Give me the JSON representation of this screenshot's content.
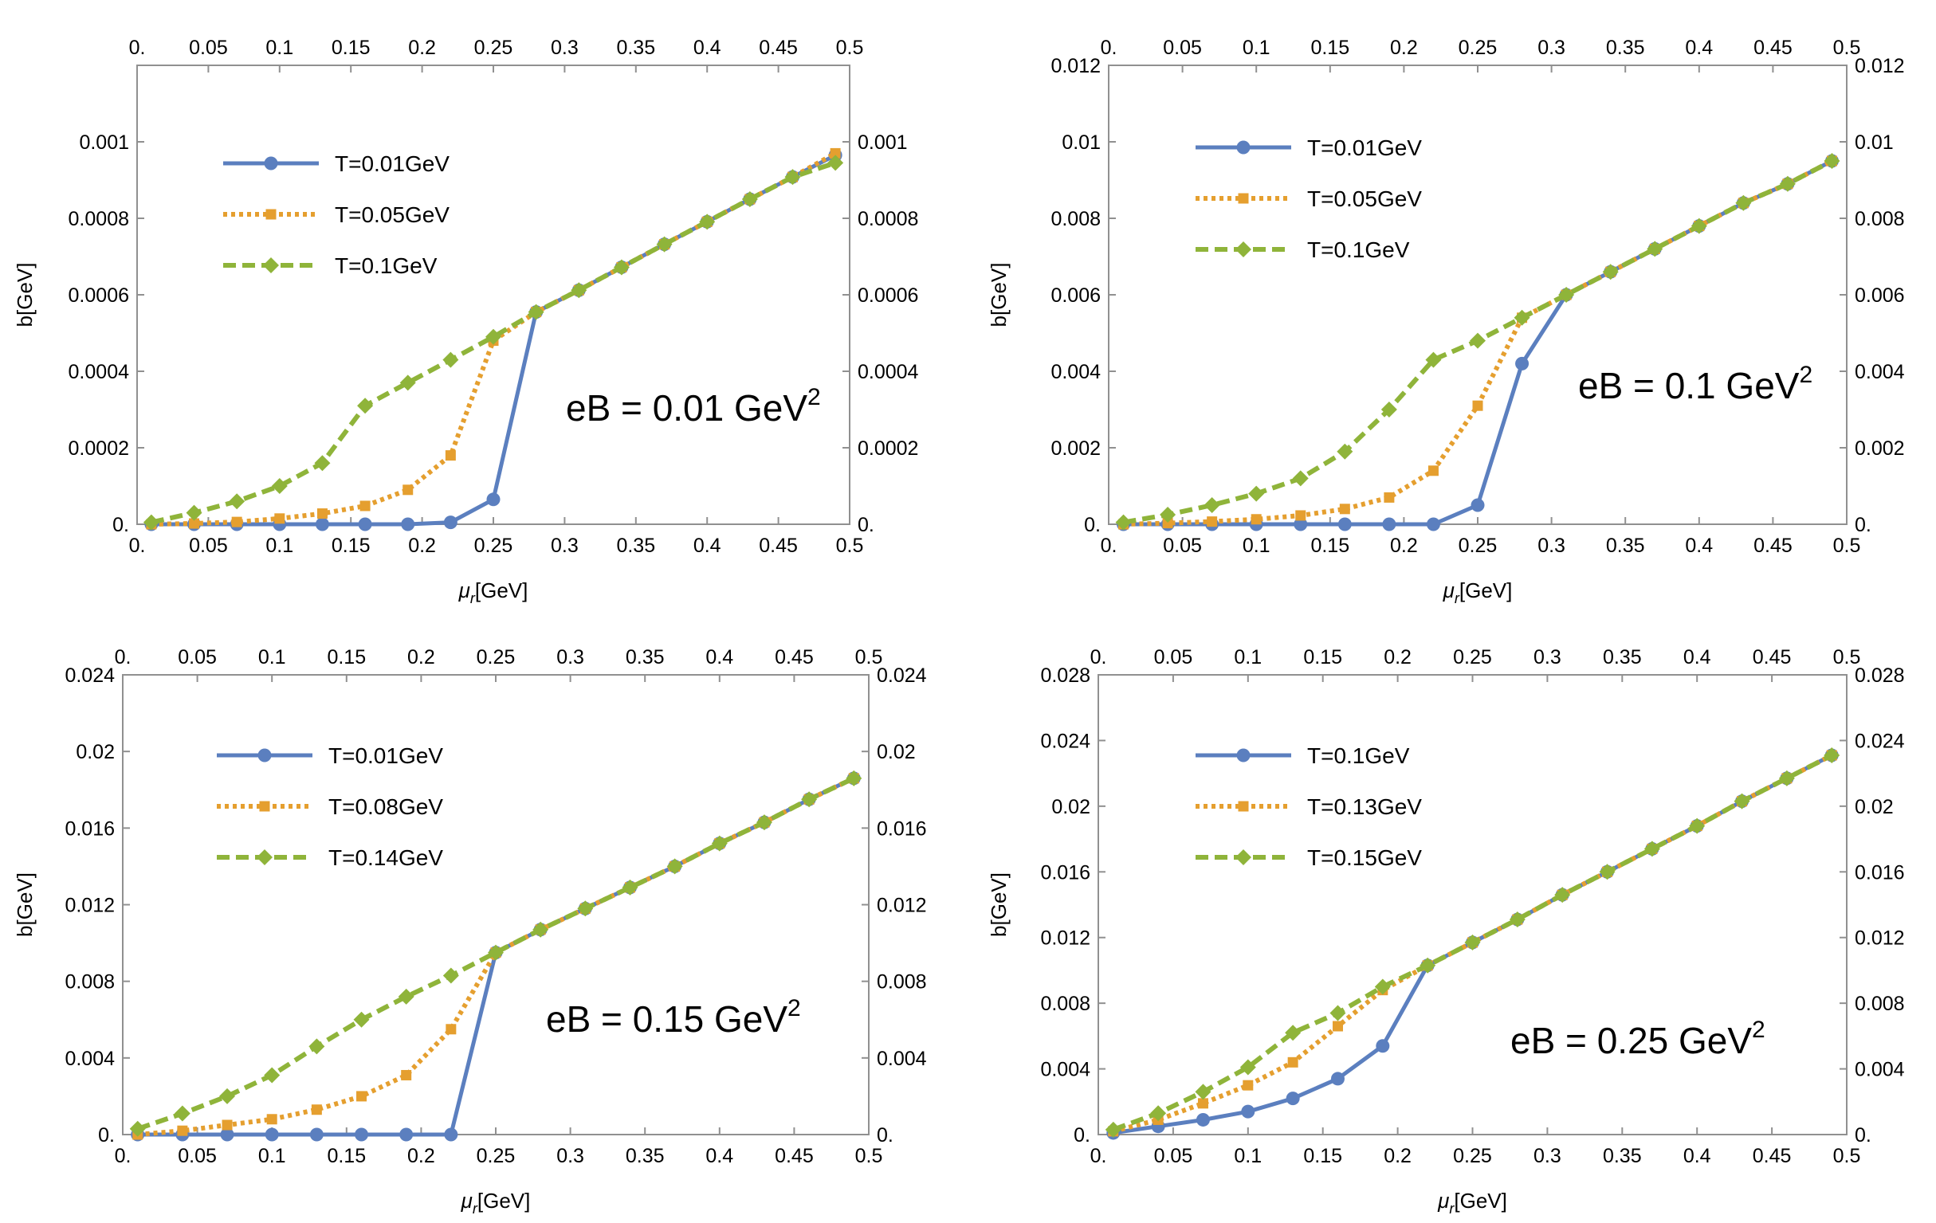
{
  "colors": {
    "blue": "#5b7fbf",
    "orange": "#e59f2f",
    "green": "#8fb43a",
    "frame": "#909090"
  },
  "chart_data": [
    {
      "type": "line",
      "xlabel_main": "μ",
      "xlabel_sub": "r",
      "xlabel_tail": "[GeV]",
      "ylabel": "b[GeV]",
      "xlim": [
        0,
        0.5
      ],
      "ylim": [
        0,
        0.0012
      ],
      "xticks": [
        0,
        0.05,
        0.1,
        0.15,
        0.2,
        0.25,
        0.3,
        0.35,
        0.4,
        0.45,
        0.5
      ],
      "xtick_labels": [
        "0.",
        "0.05",
        "0.1",
        "0.15",
        "0.2",
        "0.25",
        "0.3",
        "0.35",
        "0.4",
        "0.45",
        "0.5"
      ],
      "yticks": [
        0,
        0.0002,
        0.0004,
        0.0006,
        0.0008,
        0.001
      ],
      "ytick_labels": [
        "0.",
        "0.0002",
        "0.0004",
        "0.0006",
        "0.0008",
        "0.001"
      ],
      "annotation_main": "eB = 0.01 GeV",
      "annotation_sup": "2",
      "legend_position": "top-left",
      "series": [
        {
          "name": "T=0.01GeV",
          "style": "solid",
          "marker": "circle",
          "x": [
            0.01,
            0.04,
            0.07,
            0.1,
            0.13,
            0.16,
            0.19,
            0.22,
            0.25,
            0.28,
            0.31,
            0.34,
            0.37,
            0.4,
            0.43,
            0.46,
            0.49
          ],
          "y": [
            0,
            0,
            0,
            0,
            0,
            0,
            0,
            5e-06,
            6.5e-05,
            0.000555,
            0.000612,
            0.000672,
            0.000732,
            0.000791,
            0.00085,
            0.000908,
            0.000965
          ]
        },
        {
          "name": "T=0.05GeV",
          "style": "dotted",
          "marker": "square",
          "x": [
            0.01,
            0.04,
            0.07,
            0.1,
            0.13,
            0.16,
            0.19,
            0.22,
            0.25,
            0.28,
            0.31,
            0.34,
            0.37,
            0.4,
            0.43,
            0.46,
            0.49
          ],
          "y": [
            0,
            2e-06,
            6e-06,
            1.5e-05,
            2.8e-05,
            4.8e-05,
            9e-05,
            0.00018,
            0.00048,
            0.000555,
            0.000612,
            0.000672,
            0.000732,
            0.000791,
            0.00085,
            0.000908,
            0.00097
          ]
        },
        {
          "name": "T=0.1GeV",
          "style": "dashed",
          "marker": "diamond",
          "x": [
            0.01,
            0.04,
            0.07,
            0.1,
            0.13,
            0.16,
            0.19,
            0.22,
            0.25,
            0.28,
            0.31,
            0.34,
            0.37,
            0.4,
            0.43,
            0.46,
            0.49
          ],
          "y": [
            5e-06,
            3e-05,
            6e-05,
            0.0001,
            0.00016,
            0.00031,
            0.00037,
            0.00043,
            0.00049,
            0.000555,
            0.000612,
            0.000672,
            0.000732,
            0.000791,
            0.00085,
            0.000908,
            0.000945
          ]
        }
      ]
    },
    {
      "type": "line",
      "xlabel_main": "μ",
      "xlabel_sub": "r",
      "xlabel_tail": "[GeV]",
      "ylabel": "b[GeV]",
      "xlim": [
        0,
        0.5
      ],
      "ylim": [
        0,
        0.012
      ],
      "xticks": [
        0,
        0.05,
        0.1,
        0.15,
        0.2,
        0.25,
        0.3,
        0.35,
        0.4,
        0.45,
        0.5
      ],
      "xtick_labels": [
        "0.",
        "0.05",
        "0.1",
        "0.15",
        "0.2",
        "0.25",
        "0.3",
        "0.35",
        "0.4",
        "0.45",
        "0.5"
      ],
      "yticks": [
        0,
        0.002,
        0.004,
        0.006,
        0.008,
        0.01,
        0.012
      ],
      "ytick_labels": [
        "0.",
        "0.002",
        "0.004",
        "0.006",
        "0.008",
        "0.01",
        "0.012"
      ],
      "annotation_main": "eB = 0.1 GeV",
      "annotation_sup": "2",
      "legend_position": "top-left",
      "series": [
        {
          "name": "T=0.01GeV",
          "style": "solid",
          "marker": "circle",
          "x": [
            0.01,
            0.04,
            0.07,
            0.1,
            0.13,
            0.16,
            0.19,
            0.22,
            0.25,
            0.28,
            0.31,
            0.34,
            0.37,
            0.4,
            0.43,
            0.46,
            0.49
          ],
          "y": [
            0,
            0,
            0,
            0,
            0,
            0,
            0,
            0,
            0.0005,
            0.0042,
            0.006,
            0.0066,
            0.0072,
            0.0078,
            0.0084,
            0.0089,
            0.0095
          ]
        },
        {
          "name": "T=0.05GeV",
          "style": "dotted",
          "marker": "square",
          "x": [
            0.01,
            0.04,
            0.07,
            0.1,
            0.13,
            0.16,
            0.19,
            0.22,
            0.25,
            0.28,
            0.31,
            0.34,
            0.37,
            0.4,
            0.43,
            0.46,
            0.49
          ],
          "y": [
            0,
            3e-05,
            7e-05,
            0.00013,
            0.00023,
            0.0004,
            0.0007,
            0.0014,
            0.0031,
            0.0054,
            0.006,
            0.0066,
            0.0072,
            0.0078,
            0.0084,
            0.0089,
            0.0095
          ]
        },
        {
          "name": "T=0.1GeV",
          "style": "dashed",
          "marker": "diamond",
          "x": [
            0.01,
            0.04,
            0.07,
            0.1,
            0.13,
            0.16,
            0.19,
            0.22,
            0.25,
            0.28,
            0.31,
            0.34,
            0.37,
            0.4,
            0.43,
            0.46,
            0.49
          ],
          "y": [
            5e-05,
            0.00025,
            0.0005,
            0.0008,
            0.0012,
            0.0019,
            0.003,
            0.0043,
            0.0048,
            0.0054,
            0.006,
            0.0066,
            0.0072,
            0.0078,
            0.0084,
            0.0089,
            0.0095
          ]
        }
      ]
    },
    {
      "type": "line",
      "xlabel_main": "μ",
      "xlabel_sub": "r",
      "xlabel_tail": "[GeV]",
      "ylabel": "b[GeV]",
      "xlim": [
        0,
        0.5
      ],
      "ylim": [
        0,
        0.024
      ],
      "xticks": [
        0,
        0.05,
        0.1,
        0.15,
        0.2,
        0.25,
        0.3,
        0.35,
        0.4,
        0.45,
        0.5
      ],
      "xtick_labels": [
        "0.",
        "0.05",
        "0.1",
        "0.15",
        "0.2",
        "0.25",
        "0.3",
        "0.35",
        "0.4",
        "0.45",
        "0.5"
      ],
      "yticks": [
        0,
        0.004,
        0.008,
        0.012,
        0.016,
        0.02,
        0.024
      ],
      "ytick_labels": [
        "0.",
        "0.004",
        "0.008",
        "0.012",
        "0.016",
        "0.02",
        "0.024"
      ],
      "annotation_main": "eB = 0.15 GeV",
      "annotation_sup": "2",
      "legend_position": "top-left",
      "series": [
        {
          "name": "T=0.01GeV",
          "style": "solid",
          "marker": "circle",
          "x": [
            0.01,
            0.04,
            0.07,
            0.1,
            0.13,
            0.16,
            0.19,
            0.22,
            0.25,
            0.28,
            0.31,
            0.34,
            0.37,
            0.4,
            0.43,
            0.46,
            0.49
          ],
          "y": [
            0,
            0,
            0,
            0,
            0,
            0,
            0,
            0,
            0.0095,
            0.0107,
            0.0118,
            0.0129,
            0.014,
            0.0152,
            0.0163,
            0.0175,
            0.0186
          ]
        },
        {
          "name": "T=0.08GeV",
          "style": "dotted",
          "marker": "square",
          "x": [
            0.01,
            0.04,
            0.07,
            0.1,
            0.13,
            0.16,
            0.19,
            0.22,
            0.25,
            0.28,
            0.31,
            0.34,
            0.37,
            0.4,
            0.43,
            0.46,
            0.49
          ],
          "y": [
            0,
            0.0002,
            0.0005,
            0.0008,
            0.0013,
            0.002,
            0.0031,
            0.0055,
            0.0095,
            0.0107,
            0.0118,
            0.0129,
            0.014,
            0.0152,
            0.0163,
            0.0175,
            0.0186
          ]
        },
        {
          "name": "T=0.14GeV",
          "style": "dashed",
          "marker": "diamond",
          "x": [
            0.01,
            0.04,
            0.07,
            0.1,
            0.13,
            0.16,
            0.19,
            0.22,
            0.25,
            0.28,
            0.31,
            0.34,
            0.37,
            0.4,
            0.43,
            0.46,
            0.49
          ],
          "y": [
            0.0003,
            0.0011,
            0.002,
            0.0031,
            0.0046,
            0.006,
            0.0072,
            0.0083,
            0.0095,
            0.0107,
            0.0118,
            0.0129,
            0.014,
            0.0152,
            0.0163,
            0.0175,
            0.0186
          ]
        }
      ]
    },
    {
      "type": "line",
      "xlabel_main": "μ",
      "xlabel_sub": "r",
      "xlabel_tail": "[GeV]",
      "ylabel": "b[GeV]",
      "xlim": [
        0,
        0.5
      ],
      "ylim": [
        0,
        0.028
      ],
      "xticks": [
        0,
        0.05,
        0.1,
        0.15,
        0.2,
        0.25,
        0.3,
        0.35,
        0.4,
        0.45,
        0.5
      ],
      "xtick_labels": [
        "0.",
        "0.05",
        "0.1",
        "0.15",
        "0.2",
        "0.25",
        "0.3",
        "0.35",
        "0.4",
        "0.45",
        "0.5"
      ],
      "yticks": [
        0,
        0.004,
        0.008,
        0.012,
        0.016,
        0.02,
        0.024,
        0.028
      ],
      "ytick_labels": [
        "0.",
        "0.004",
        "0.008",
        "0.012",
        "0.016",
        "0.02",
        "0.024",
        "0.028"
      ],
      "annotation_main": "eB = 0.25 GeV",
      "annotation_sup": "2",
      "legend_position": "top-left",
      "series": [
        {
          "name": "T=0.1GeV",
          "style": "solid",
          "marker": "circle",
          "x": [
            0.01,
            0.04,
            0.07,
            0.1,
            0.13,
            0.16,
            0.19,
            0.22,
            0.25,
            0.28,
            0.31,
            0.34,
            0.37,
            0.4,
            0.43,
            0.46,
            0.49
          ],
          "y": [
            0.0001,
            0.0005,
            0.0009,
            0.0014,
            0.0022,
            0.0034,
            0.0054,
            0.0103,
            0.0117,
            0.0131,
            0.0146,
            0.016,
            0.0174,
            0.0188,
            0.0203,
            0.0217,
            0.0231
          ]
        },
        {
          "name": "T=0.13GeV",
          "style": "dotted",
          "marker": "square",
          "x": [
            0.01,
            0.04,
            0.07,
            0.1,
            0.13,
            0.16,
            0.19,
            0.22,
            0.25,
            0.28,
            0.31,
            0.34,
            0.37,
            0.4,
            0.43,
            0.46,
            0.49
          ],
          "y": [
            0.0002,
            0.0009,
            0.0019,
            0.003,
            0.0044,
            0.0066,
            0.0088,
            0.0103,
            0.0117,
            0.0131,
            0.0146,
            0.016,
            0.0174,
            0.0188,
            0.0203,
            0.0217,
            0.0231
          ]
        },
        {
          "name": "T=0.15GeV",
          "style": "dashed",
          "marker": "diamond",
          "x": [
            0.01,
            0.04,
            0.07,
            0.1,
            0.13,
            0.16,
            0.19,
            0.22,
            0.25,
            0.28,
            0.31,
            0.34,
            0.37,
            0.4,
            0.43,
            0.46,
            0.49
          ],
          "y": [
            0.0003,
            0.0013,
            0.0026,
            0.0041,
            0.0062,
            0.0074,
            0.009,
            0.0103,
            0.0117,
            0.0131,
            0.0146,
            0.016,
            0.0174,
            0.0188,
            0.0203,
            0.0217,
            0.0231
          ]
        }
      ]
    }
  ]
}
